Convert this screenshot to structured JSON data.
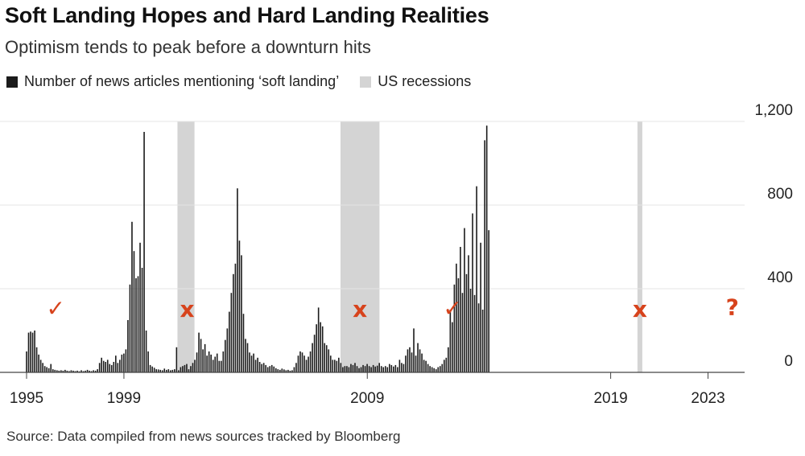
{
  "chart_data": {
    "type": "bar",
    "title": "Soft Landing Hopes and Hard Landing Realities",
    "subtitle": "Optimism tends to peak before a downturn hits",
    "legend": [
      {
        "label": "Number of news articles mentioning ‘soft landing’",
        "color": "#1b1b1b"
      },
      {
        "label": "US recessions",
        "color": "#d4d4d4"
      }
    ],
    "source": "Source: Data compiled from news sources tracked by Bloomberg",
    "ylim": [
      0,
      1200
    ],
    "yticks": [
      {
        "value": 1200,
        "label": "1,200"
      },
      {
        "value": 800,
        "label": "800"
      },
      {
        "value": 400,
        "label": "400"
      },
      {
        "value": 0,
        "label": "0"
      }
    ],
    "xlim": [
      1995,
      2025
    ],
    "xticks": [
      {
        "value": 1995,
        "label": "1995"
      },
      {
        "value": 1999,
        "label": "1999"
      },
      {
        "value": 2009,
        "label": "2009"
      },
      {
        "value": 2019,
        "label": "2019"
      },
      {
        "value": 2023,
        "label": "2023"
      }
    ],
    "recessions": [
      {
        "start": 2001.2,
        "end": 2001.9
      },
      {
        "start": 2007.9,
        "end": 2009.5
      },
      {
        "start": 2020.1,
        "end": 2020.3
      }
    ],
    "series": [
      {
        "name": "Number of news articles mentioning ‘soft landing’",
        "x_start": 1995.0,
        "x_step": 0.0833,
        "values": [
          100,
          190,
          195,
          190,
          200,
          120,
          85,
          60,
          45,
          30,
          25,
          20,
          40,
          15,
          12,
          10,
          8,
          10,
          8,
          12,
          8,
          6,
          10,
          8,
          6,
          8,
          5,
          10,
          6,
          8,
          12,
          8,
          6,
          10,
          8,
          15,
          45,
          70,
          55,
          50,
          60,
          40,
          35,
          50,
          80,
          45,
          60,
          85,
          90,
          110,
          250,
          420,
          720,
          580,
          450,
          460,
          620,
          500,
          1150,
          200,
          100,
          35,
          28,
          22,
          15,
          14,
          12,
          10,
          18,
          12,
          15,
          10,
          12,
          15,
          120,
          10,
          25,
          30,
          35,
          40,
          15,
          30,
          45,
          60,
          95,
          190,
          160,
          110,
          135,
          80,
          100,
          85,
          60,
          75,
          90,
          55,
          55,
          100,
          155,
          210,
          290,
          380,
          470,
          520,
          880,
          630,
          560,
          280,
          160,
          140,
          95,
          80,
          90,
          60,
          70,
          50,
          40,
          45,
          35,
          25,
          30,
          35,
          28,
          20,
          15,
          12,
          18,
          14,
          10,
          12,
          8,
          10,
          25,
          45,
          80,
          100,
          95,
          80,
          60,
          75,
          100,
          140,
          180,
          230,
          310,
          240,
          220,
          140,
          130,
          110,
          80,
          60,
          60,
          55,
          70,
          45,
          25,
          30,
          30,
          25,
          40,
          35,
          45,
          30,
          20,
          25,
          35,
          30,
          40,
          30,
          25,
          35,
          28,
          32,
          45,
          30,
          25,
          30,
          25,
          40,
          35,
          28,
          35,
          25,
          60,
          45,
          40,
          80,
          110,
          120,
          95,
          210,
          80,
          140,
          110,
          90,
          60,
          55,
          40,
          30,
          25,
          20,
          15,
          25,
          30,
          40,
          60,
          70,
          120,
          300,
          240,
          420,
          520,
          450,
          600,
          380,
          690,
          470,
          560,
          400,
          760,
          370,
          890,
          330,
          620,
          300,
          1110,
          1180,
          680
        ]
      }
    ],
    "annotations": [
      {
        "text": "✓",
        "x": 1996.2,
        "y": 270
      },
      {
        "text": "x",
        "x": 2001.6,
        "y": 265
      },
      {
        "text": "x",
        "x": 2008.7,
        "y": 265
      },
      {
        "text": "✓",
        "x": 2012.5,
        "y": 270
      },
      {
        "text": "x",
        "x": 2020.2,
        "y": 265
      },
      {
        "text": "?",
        "x": 2024.0,
        "y": 275
      }
    ]
  }
}
